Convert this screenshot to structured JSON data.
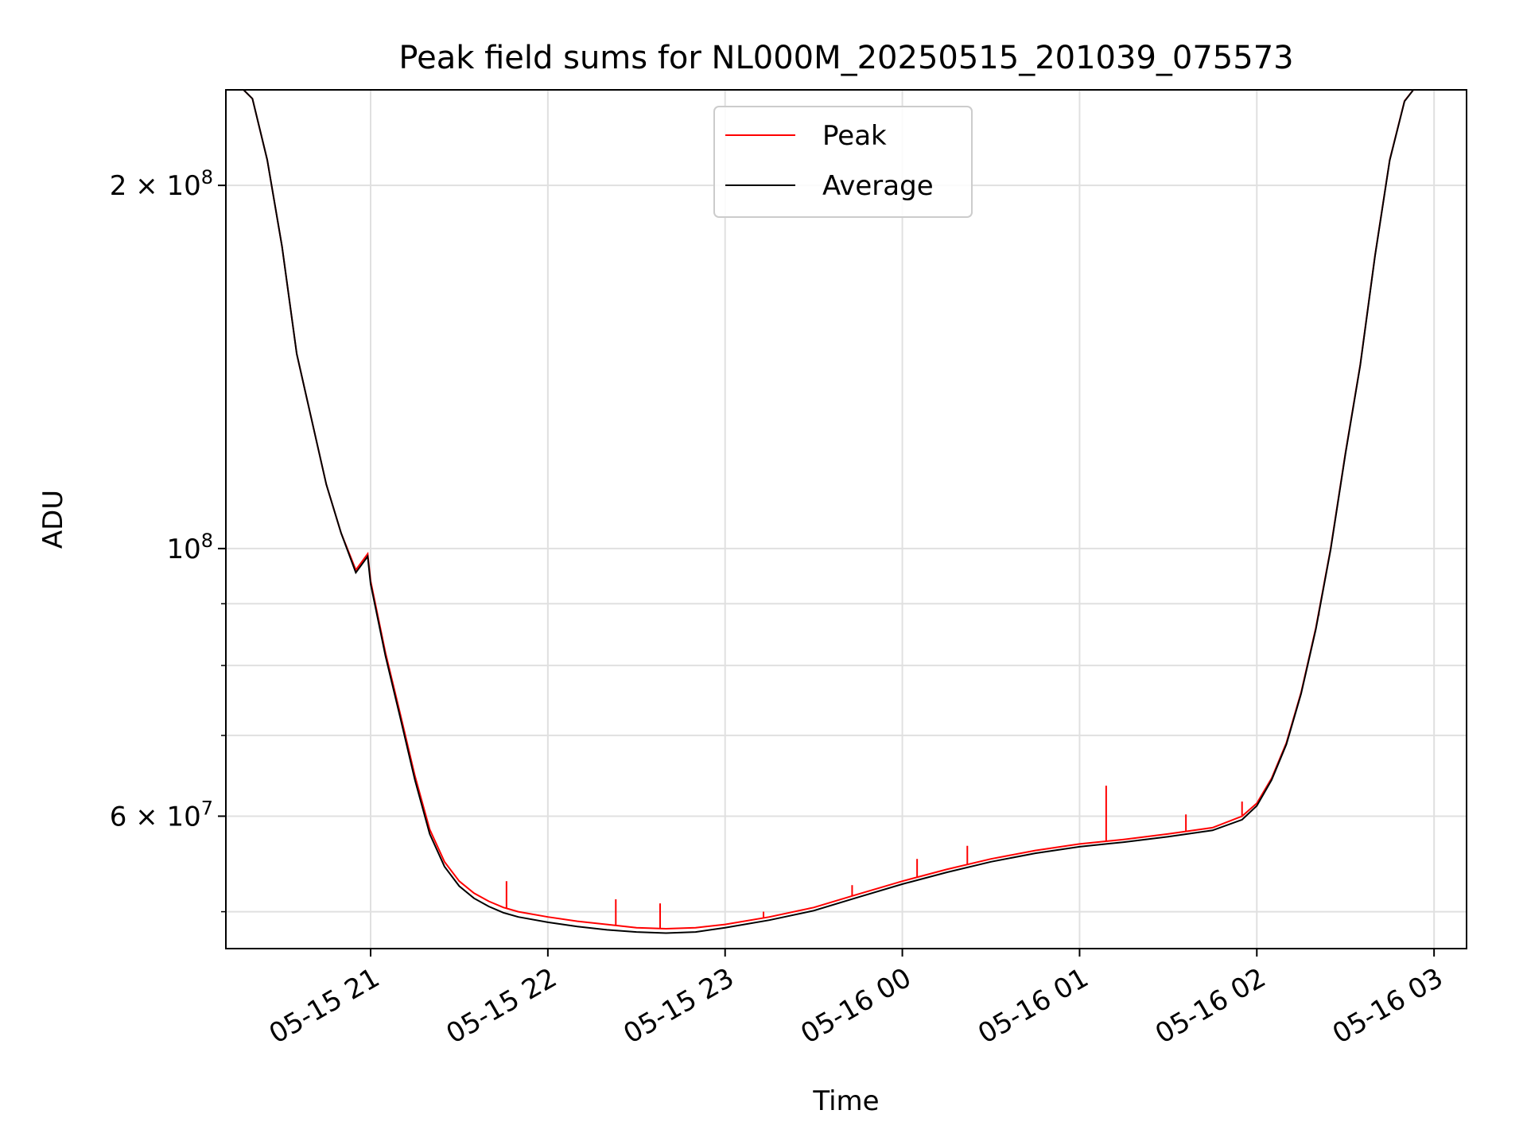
{
  "chart_data": {
    "type": "line",
    "title": "Peak field sums for NL000M_20250515_201039_075573",
    "xlabel": "Time",
    "ylabel": "ADU",
    "yscale": "log",
    "xlim": [
      "05-15 20:11",
      "05-16 03:11"
    ],
    "ylim": [
      46600000,
      240000000
    ],
    "x_ticks": [
      {
        "label": "05-15 21",
        "value": "05-15 21:00"
      },
      {
        "label": "05-15 22",
        "value": "05-15 22:00"
      },
      {
        "label": "05-15 23",
        "value": "05-15 23:00"
      },
      {
        "label": "05-16 00",
        "value": "05-16 00:00"
      },
      {
        "label": "05-16 01",
        "value": "05-16 01:00"
      },
      {
        "label": "05-16 02",
        "value": "05-16 02:00"
      },
      {
        "label": "05-16 03",
        "value": "05-16 03:00"
      }
    ],
    "y_major_ticks": [
      {
        "mantissa": "",
        "exponent": "8",
        "value": 100000000
      },
      {
        "mantissa": "2 × ",
        "exponent": "8",
        "value": 200000000
      },
      {
        "mantissa": "6 × ",
        "exponent": "7",
        "value": 60000000
      }
    ],
    "y_minor_ticks": [
      50000000,
      70000000,
      80000000,
      90000000
    ],
    "grid": true,
    "legend_position": "top-center",
    "series": [
      {
        "name": "Peak",
        "color": "#ff0000",
        "x": [
          "05-15 20:11",
          "05-15 20:17",
          "05-15 20:20",
          "05-15 20:25",
          "05-15 20:30",
          "05-15 20:35",
          "05-15 20:40",
          "05-15 20:45",
          "05-15 20:50",
          "05-15 20:55",
          "05-15 20:59",
          "05-15 21:00",
          "05-15 21:05",
          "05-15 21:10",
          "05-15 21:15",
          "05-15 21:20",
          "05-15 21:25",
          "05-15 21:30",
          "05-15 21:35",
          "05-15 21:40",
          "05-15 21:45",
          "05-15 21:50",
          "05-15 22:00",
          "05-15 22:10",
          "05-15 22:20",
          "05-15 22:30",
          "05-15 22:40",
          "05-15 22:50",
          "05-15 23:00",
          "05-15 23:15",
          "05-15 23:30",
          "05-15 23:45",
          "05-16 00:00",
          "05-16 00:15",
          "05-16 00:30",
          "05-16 00:45",
          "05-16 01:00",
          "05-16 01:15",
          "05-16 01:30",
          "05-16 01:45",
          "05-16 01:55",
          "05-16 02:00",
          "05-16 02:05",
          "05-16 02:10",
          "05-16 02:15",
          "05-16 02:20",
          "05-16 02:25",
          "05-16 02:30",
          "05-16 02:35",
          "05-16 02:40",
          "05-16 02:45",
          "05-16 02:50",
          "05-16 02:53",
          "05-16 02:55",
          "05-16 03:00",
          "05-16 03:11"
        ],
        "y": [
          240000000,
          240000000,
          236000000,
          210000000,
          178000000,
          145000000,
          128000000,
          113000000,
          103000000,
          96000000,
          99000000,
          94000000,
          82000000,
          73000000,
          64800000,
          58500000,
          55000000,
          53000000,
          51800000,
          51000000,
          50400000,
          50000000,
          49500000,
          49100000,
          48800000,
          48500000,
          48400000,
          48500000,
          48800000,
          49500000,
          50400000,
          51700000,
          53000000,
          54200000,
          55300000,
          56200000,
          56900000,
          57400000,
          58000000,
          58700000,
          60000000,
          61500000,
          64500000,
          69000000,
          76000000,
          86000000,
          100000000,
          120000000,
          142000000,
          175000000,
          210000000,
          235000000,
          240000000,
          240000000,
          240000000,
          240000000
        ],
        "spikes": [
          {
            "x": "05-15 21:46",
            "y": 53000000
          },
          {
            "x": "05-15 22:23",
            "y": 51200000
          },
          {
            "x": "05-15 22:38",
            "y": 50800000
          },
          {
            "x": "05-15 23:13",
            "y": 50000000
          },
          {
            "x": "05-15 23:43",
            "y": 52600000
          },
          {
            "x": "05-16 00:05",
            "y": 55300000
          },
          {
            "x": "05-16 00:22",
            "y": 56700000
          },
          {
            "x": "05-16 01:09",
            "y": 63600000
          },
          {
            "x": "05-16 01:36",
            "y": 60200000
          },
          {
            "x": "05-16 01:55",
            "y": 61700000
          },
          {
            "x": "05-16 02:21",
            "y": 88000000
          }
        ]
      },
      {
        "name": "Average",
        "color": "#000000",
        "x": [
          "05-15 20:11",
          "05-15 20:17",
          "05-15 20:20",
          "05-15 20:25",
          "05-15 20:30",
          "05-15 20:35",
          "05-15 20:40",
          "05-15 20:45",
          "05-15 20:50",
          "05-15 20:55",
          "05-15 20:59",
          "05-15 21:00",
          "05-15 21:05",
          "05-15 21:10",
          "05-15 21:15",
          "05-15 21:20",
          "05-15 21:25",
          "05-15 21:30",
          "05-15 21:35",
          "05-15 21:40",
          "05-15 21:45",
          "05-15 21:50",
          "05-15 22:00",
          "05-15 22:10",
          "05-15 22:20",
          "05-15 22:30",
          "05-15 22:40",
          "05-15 22:50",
          "05-15 23:00",
          "05-15 23:15",
          "05-15 23:30",
          "05-15 23:45",
          "05-16 00:00",
          "05-16 00:15",
          "05-16 00:30",
          "05-16 00:45",
          "05-16 01:00",
          "05-16 01:15",
          "05-16 01:30",
          "05-16 01:45",
          "05-16 01:55",
          "05-16 02:00",
          "05-16 02:05",
          "05-16 02:10",
          "05-16 02:15",
          "05-16 02:20",
          "05-16 02:25",
          "05-16 02:30",
          "05-16 02:35",
          "05-16 02:40",
          "05-16 02:45",
          "05-16 02:50",
          "05-16 02:53",
          "05-16 02:55",
          "05-16 03:00",
          "05-16 03:11"
        ],
        "y": [
          240000000,
          240000000,
          236000000,
          210000000,
          178000000,
          145000000,
          128000000,
          113000000,
          103000000,
          95500000,
          98500000,
          93500000,
          81500000,
          72500000,
          64300000,
          58000000,
          54500000,
          52500000,
          51300000,
          50500000,
          49900000,
          49500000,
          49000000,
          48600000,
          48300000,
          48100000,
          48000000,
          48100000,
          48500000,
          49200000,
          50100000,
          51400000,
          52700000,
          53900000,
          55000000,
          55900000,
          56600000,
          57100000,
          57700000,
          58400000,
          59600000,
          61200000,
          64300000,
          68800000,
          75800000,
          85800000,
          99800000,
          119800000,
          141800000,
          174800000,
          209800000,
          234800000,
          240000000,
          240000000,
          240000000,
          240000000
        ]
      }
    ]
  }
}
